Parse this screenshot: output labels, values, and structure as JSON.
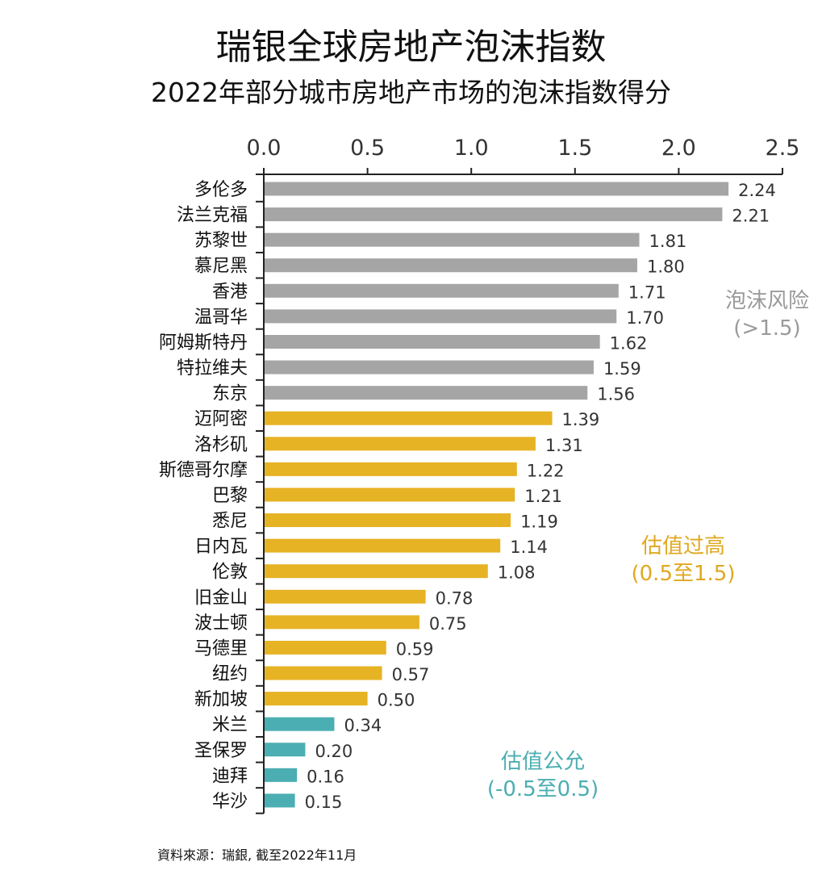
{
  "title": "瑞银全球房地产泡沫指数",
  "subtitle": "2022年部分城市房地产市场的泡沫指数得分",
  "source": "資料來源：瑞銀, 截至2022年11月",
  "chart_data": {
    "type": "bar",
    "orientation": "horizontal",
    "title": "瑞银全球房地产泡沫指数",
    "subtitle": "2022年部分城市房地产市场的泡沫指数得分",
    "xlim": [
      0,
      2.5
    ],
    "xticks": [
      "0.0",
      "0.5",
      "1.0",
      "1.5",
      "2.0",
      "2.5"
    ],
    "xaxis_position": "top",
    "grid": false,
    "categories": [
      "多伦多",
      "法兰克福",
      "苏黎世",
      "慕尼黑",
      "香港",
      "温哥华",
      "阿姆斯特丹",
      "特拉维夫",
      "东京",
      "迈阿密",
      "洛杉矶",
      "斯德哥尔摩",
      "巴黎",
      "悉尼",
      "日内瓦",
      "伦敦",
      "旧金山",
      "波士顿",
      "马德里",
      "纽约",
      "新加坡",
      "米兰",
      "圣保罗",
      "迪拜",
      "华沙"
    ],
    "values": [
      2.24,
      2.21,
      1.81,
      1.8,
      1.71,
      1.7,
      1.62,
      1.59,
      1.56,
      1.39,
      1.31,
      1.22,
      1.21,
      1.19,
      1.14,
      1.08,
      0.78,
      0.75,
      0.59,
      0.57,
      0.5,
      0.34,
      0.2,
      0.16,
      0.15
    ],
    "labels": [
      "2.24",
      "2.21",
      "1.81",
      "1.80",
      "1.71",
      "1.70",
      "1.62",
      "1.59",
      "1.56",
      "1.39",
      "1.31",
      "1.22",
      "1.21",
      "1.19",
      "1.14",
      "1.08",
      "0.78",
      "0.75",
      "0.59",
      "0.57",
      "0.50",
      "0.34",
      "0.20",
      "0.16",
      "0.15"
    ],
    "zones": [
      {
        "name": "泡沫风险",
        "range": "(>1.5)",
        "color": "#a5a5a5",
        "min": 1.5
      },
      {
        "name": "估值过高",
        "range": "(0.5至1.5)",
        "color": "#e6b325",
        "min": 0.5
      },
      {
        "name": "估值公允",
        "range": "(-0.5至0.5)",
        "color": "#4baeb2",
        "min": -0.5
      }
    ],
    "zone_label_color": {
      "泡沫风险": "#9a9a9a",
      "估值过高": "#e0a820",
      "估值公允": "#4baeb2"
    }
  }
}
